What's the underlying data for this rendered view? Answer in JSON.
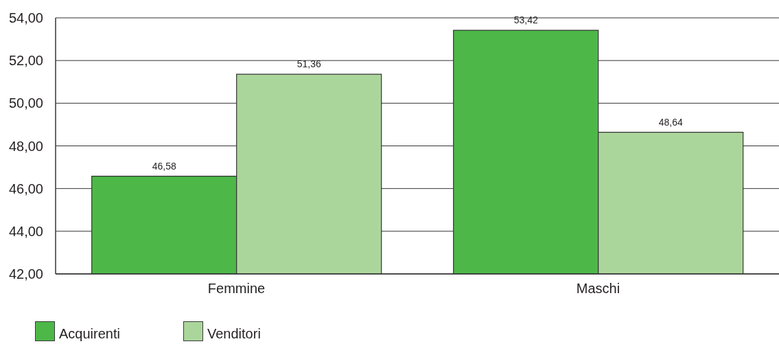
{
  "chart_data": {
    "type": "bar",
    "categories": [
      "Femmine",
      "Maschi"
    ],
    "series": [
      {
        "name": "Acquirenti",
        "color": "#4db848",
        "values": [
          46.58,
          53.42
        ],
        "value_labels": [
          "46,58",
          "53,42"
        ]
      },
      {
        "name": "Venditori",
        "color": "#abd69b",
        "values": [
          51.36,
          48.64
        ],
        "value_labels": [
          "51,36",
          "48,64"
        ]
      }
    ],
    "ylim": [
      42,
      54
    ],
    "yticks": [
      {
        "value": 42,
        "label": "42,00"
      },
      {
        "value": 44,
        "label": "44,00"
      },
      {
        "value": 46,
        "label": "46,00"
      },
      {
        "value": 48,
        "label": "48,00"
      },
      {
        "value": 50,
        "label": "50,00"
      },
      {
        "value": 52,
        "label": "52,00"
      },
      {
        "value": 54,
        "label": "54,00"
      }
    ],
    "grid": "y",
    "legend": "bottom left"
  }
}
